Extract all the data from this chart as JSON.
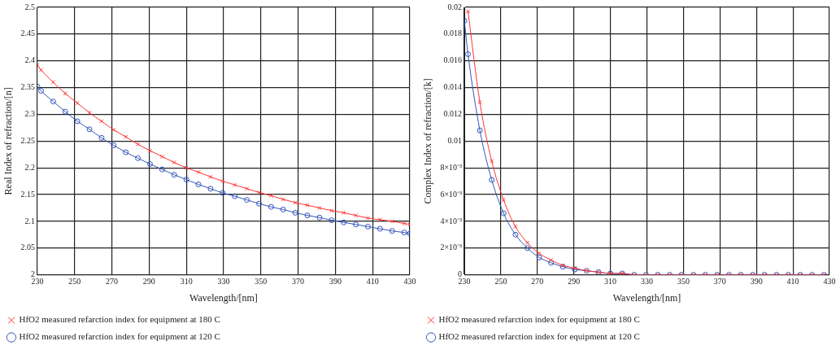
{
  "chart_data": [
    {
      "type": "line",
      "xlabel": "Wavelength/[nm]",
      "ylabel": "Real Index of refraction/[n]",
      "x": [
        230,
        232,
        238.5,
        245,
        251.5,
        258,
        264.5,
        271,
        277.5,
        284,
        290.5,
        297,
        303.5,
        310,
        316.5,
        323,
        329.5,
        336,
        342.5,
        349,
        355.5,
        362,
        368.5,
        375,
        381.5,
        388,
        394.5,
        401,
        407.5,
        414,
        420.5,
        427,
        430
      ],
      "series": [
        {
          "name": "HfO2 measured refarction index for equipment at 180 C",
          "color": "#ff3333",
          "marker": "cross",
          "values": [
            2.392,
            2.383,
            2.36,
            2.339,
            2.321,
            2.303,
            2.287,
            2.271,
            2.258,
            2.244,
            2.232,
            2.221,
            2.21,
            2.2,
            2.192,
            2.183,
            2.175,
            2.168,
            2.161,
            2.154,
            2.148,
            2.141,
            2.135,
            2.13,
            2.125,
            2.12,
            2.116,
            2.111,
            2.106,
            2.103,
            2.1,
            2.096,
            2.094
          ]
        },
        {
          "name": "HfO2 measured refarction index for equipment at 120 C",
          "color": "#3355bb",
          "marker": "circle",
          "values": [
            2.352,
            2.344,
            2.324,
            2.305,
            2.287,
            2.272,
            2.256,
            2.242,
            2.229,
            2.218,
            2.207,
            2.197,
            2.187,
            2.178,
            2.169,
            2.161,
            2.153,
            2.147,
            2.14,
            2.133,
            2.127,
            2.122,
            2.116,
            2.111,
            2.107,
            2.102,
            2.098,
            2.094,
            2.09,
            2.086,
            2.082,
            2.079,
            2.077
          ]
        }
      ],
      "xlim": [
        230,
        430
      ],
      "xticks": [
        230,
        250,
        270,
        290,
        310,
        330,
        350,
        370,
        390,
        410,
        430
      ],
      "ylim": [
        2,
        2.5
      ],
      "yticks": [
        2,
        2.05,
        2.1,
        2.15,
        2.2,
        2.25,
        2.3,
        2.35,
        2.4,
        2.45,
        2.5
      ],
      "grid": true,
      "legend": "bottom"
    },
    {
      "type": "line",
      "xlabel": "Wavelength/[nm]",
      "ylabel": "Complex Index of refraction/[k]",
      "x": [
        230,
        232,
        238.5,
        245,
        251.5,
        258,
        264.5,
        271,
        277.5,
        284,
        290.5,
        297,
        303.5,
        310,
        316.5,
        323,
        329.5,
        336,
        342.5,
        349,
        355.5,
        362,
        368.5,
        375,
        381.5,
        388,
        394.5,
        401,
        407.5,
        414,
        420.5,
        427
      ],
      "series": [
        {
          "name": "HfO2 measured refarction index for equipment at 180 C",
          "color": "#ff3333",
          "marker": "cross",
          "values": [
            null,
            0.0197,
            0.0129,
            0.0085,
            0.0056,
            0.0036,
            0.0024,
            0.0016,
            0.0011,
            0.0007,
            0.0005,
            0.0003,
            0.0002,
            0.0001,
            0.0001,
            0,
            0,
            0,
            0,
            0,
            0,
            0,
            0,
            0,
            0,
            0,
            0,
            0,
            0,
            0,
            0,
            0
          ]
        },
        {
          "name": "HfO2 measured refarction index for equipment at 120 C",
          "color": "#3355bb",
          "marker": "circle",
          "values": [
            0.019,
            0.0165,
            0.0108,
            0.0071,
            0.0046,
            0.003,
            0.002,
            0.0013,
            0.0009,
            0.0006,
            0.0004,
            0.0003,
            0.0002,
            0.0001,
            0.0001,
            0,
            0,
            0,
            0,
            0,
            0,
            0,
            0,
            0,
            0,
            0,
            0,
            0,
            0,
            0,
            0,
            0
          ]
        }
      ],
      "xlim": [
        230,
        430
      ],
      "xticks": [
        230,
        250,
        270,
        290,
        310,
        330,
        350,
        370,
        390,
        410,
        430
      ],
      "ylim": [
        0,
        0.02
      ],
      "yticks": [
        0,
        {
          "value": 0.002,
          "label": "2×10⁻³"
        },
        {
          "value": 0.004,
          "label": "4×10⁻³"
        },
        {
          "value": 0.006,
          "label": "6×10⁻³"
        },
        {
          "value": 0.008,
          "label": "8×10⁻³"
        },
        0.01,
        0.012,
        0.014,
        0.016,
        0.018,
        0.02
      ],
      "grid": true,
      "legend": "bottom"
    }
  ]
}
